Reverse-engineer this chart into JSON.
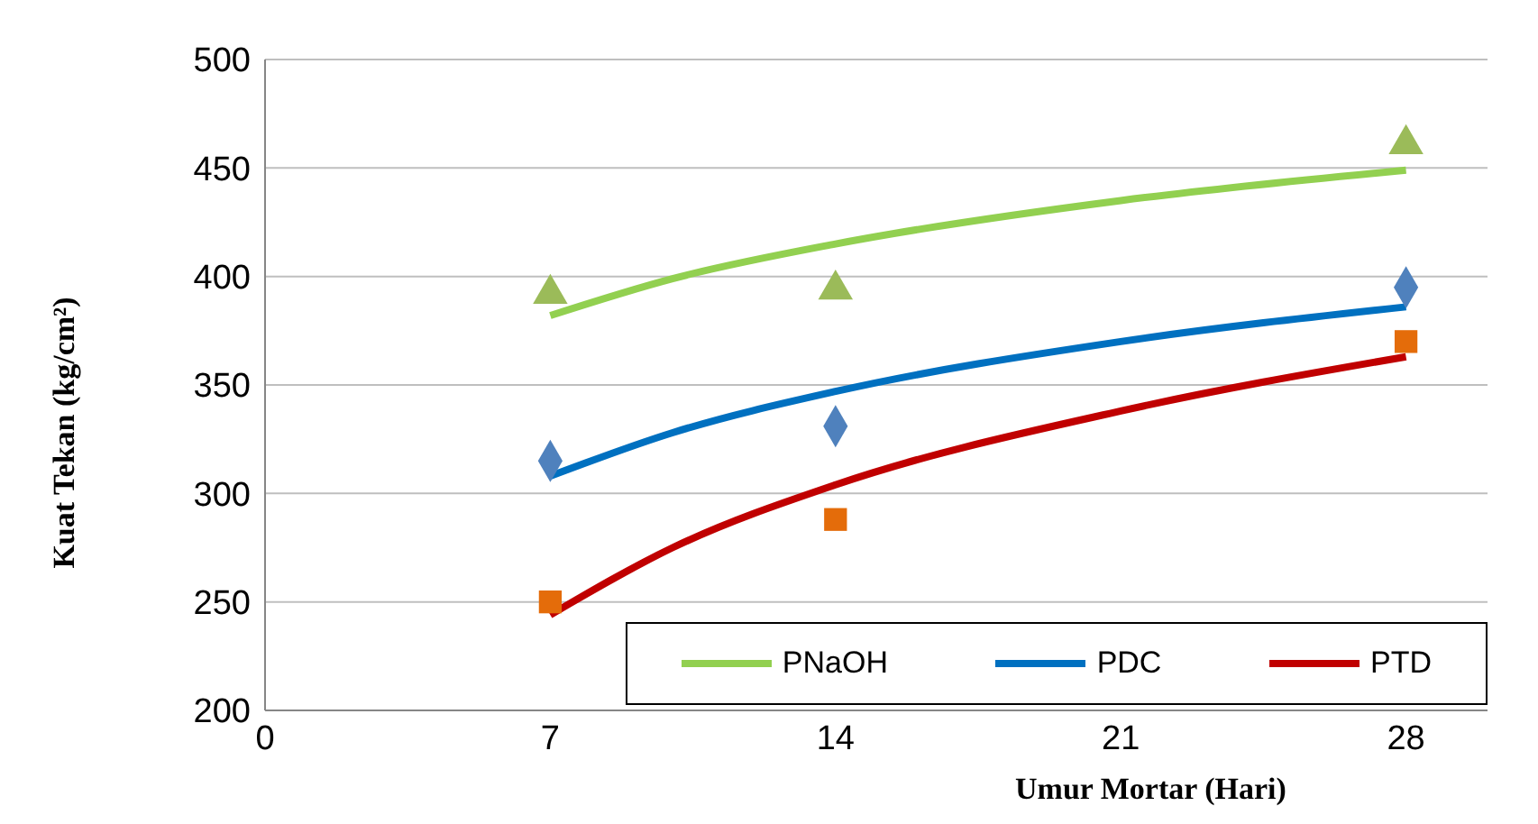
{
  "chart_data": {
    "type": "scatter",
    "xlabel": "Umur Mortar (Hari)",
    "ylabel": "Kuat Tekan (kg/cm²)",
    "xlim": [
      0,
      30
    ],
    "xticks": [
      0,
      7,
      14,
      21,
      28
    ],
    "ylim": [
      200,
      500
    ],
    "yticks": [
      200,
      250,
      300,
      350,
      400,
      450,
      500
    ],
    "grid": "y",
    "legend": "bottom right",
    "series": [
      {
        "marker": "triangle",
        "color": "#9bbb59",
        "x": [
          7,
          14,
          28
        ],
        "values": [
          392,
          394,
          461
        ]
      },
      {
        "marker": "diamond",
        "color": "#4f81bd",
        "x": [
          7,
          14,
          28
        ],
        "values": [
          315,
          331,
          395
        ]
      },
      {
        "marker": "square",
        "color": "#e46c0a",
        "x": [
          7,
          14,
          28
        ],
        "values": [
          250,
          288,
          370
        ]
      },
      {
        "type": "line",
        "name": "PNaOH",
        "marker": "none",
        "color": "#92d050",
        "x": [
          7,
          10,
          14,
          21,
          28
        ],
        "values": [
          382,
          399,
          415,
          435,
          449
        ]
      },
      {
        "type": "line",
        "name": "PDC",
        "marker": "none",
        "color": "#0070c0",
        "x": [
          7,
          10,
          14,
          21,
          28
        ],
        "values": [
          308,
          328,
          347,
          370,
          386
        ]
      },
      {
        "type": "line",
        "name": "PTD",
        "marker": "none",
        "color": "#c00000",
        "x": [
          7,
          10,
          14,
          21,
          28
        ],
        "values": [
          244,
          275,
          304,
          338,
          363
        ]
      }
    ]
  }
}
